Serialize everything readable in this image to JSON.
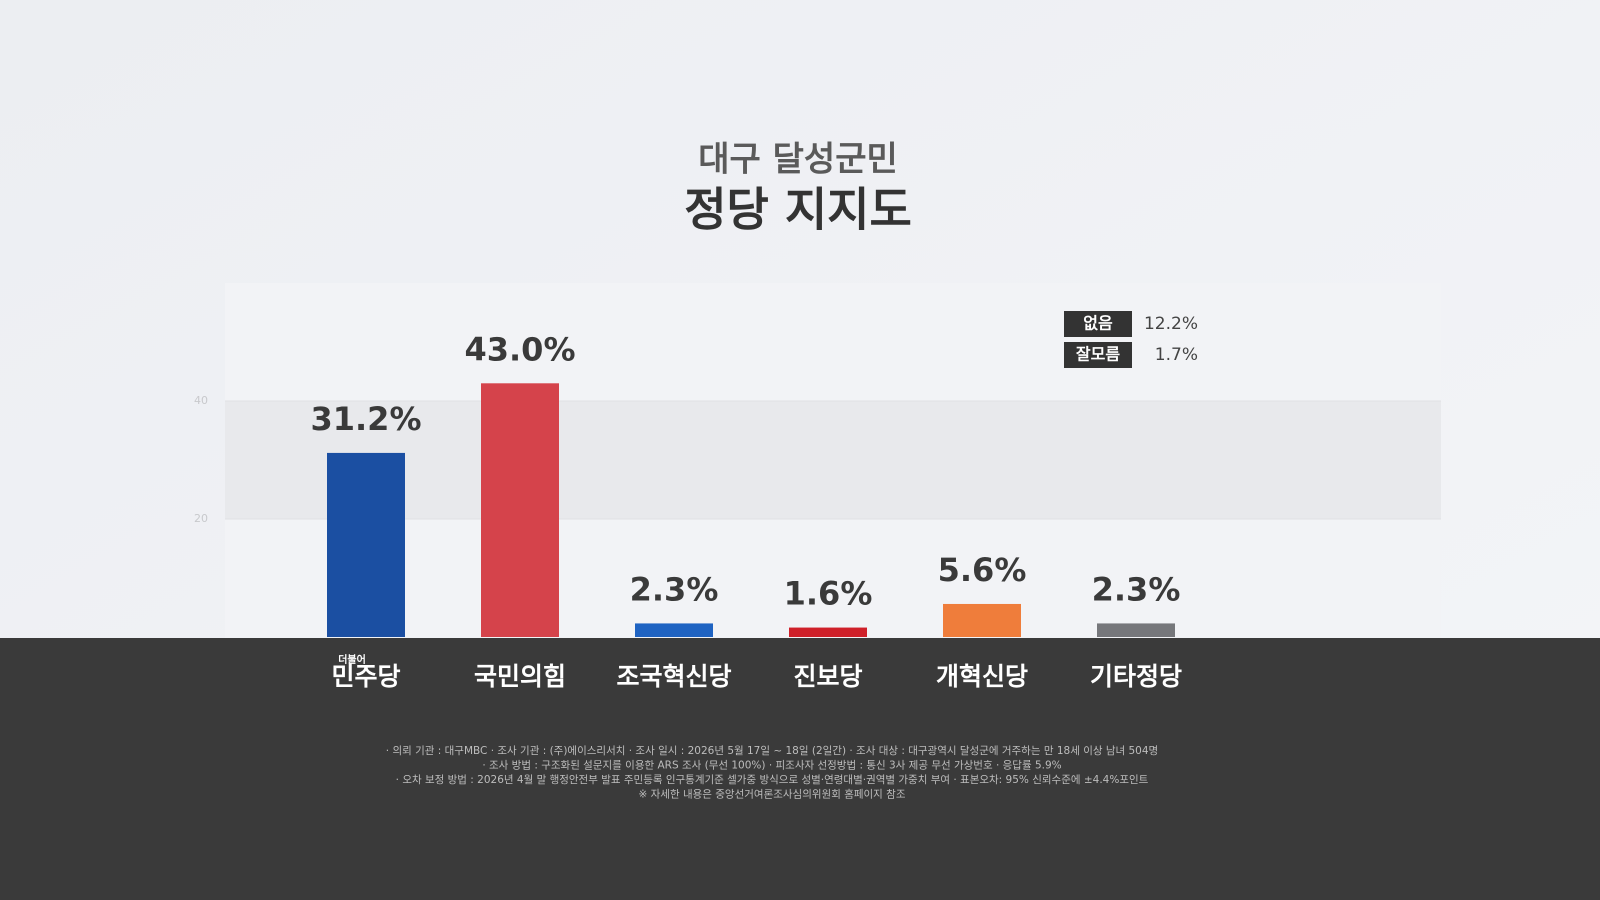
{
  "chart_data": {
    "type": "bar",
    "title": "대구 달성군민",
    "subtitle": "정당 지지도",
    "categories": [
      "민주당",
      "국민의힘",
      "조국혁신당",
      "진보당",
      "개혁신당",
      "기타정당"
    ],
    "category_superscripts": [
      "더불어",
      null,
      null,
      null,
      null,
      null
    ],
    "values": [
      31.2,
      43.0,
      2.3,
      1.6,
      5.6,
      2.3
    ],
    "value_labels": [
      "31.2%",
      "43.0%",
      "2.3%",
      "1.6%",
      "5.6%",
      "2.3%"
    ],
    "colors": [
      "#1b4fa2",
      "#d5434b",
      "#1f63c2",
      "#cf2029",
      "#ef7d3b",
      "#76777b"
    ],
    "ylim": [
      0,
      60
    ],
    "yticks": [
      20,
      40
    ],
    "grid": true,
    "others": [
      {
        "label": "없음",
        "value": 12.2,
        "value_label": "12.2%"
      },
      {
        "label": "잘모름",
        "value": 1.7,
        "value_label": "1.7%"
      }
    ],
    "footnotes": [
      "· 의뢰 기관 : 대구MBC  · 조사 기관 : (주)에이스리서치  · 조사 일시 : 2026년 5월 17일 ~ 18일 (2일간)  · 조사 대상 : 대구광역시 달성군에 거주하는 만 18세 이상 남녀 504명",
      "· 조사 방법 : 구조화된 설문지를 이용한 ARS 조사 (무선 100%)  · 피조사자 선정방법 : 통신 3사 제공 무선 가상번호  · 응답률 5.9%",
      "· 오차 보정 방법 : 2026년 4월 말 행정안전부 발표 주민등록 인구통계기준 셀가중 방식으로 성별·연령대별·권역별 가중치 부여  · 표본오차: 95% 신뢰수준에 ±4.4%포인트",
      "※ 자세한 내용은 중앙선거여론조사심의위원회 홈페이지 참조"
    ]
  }
}
